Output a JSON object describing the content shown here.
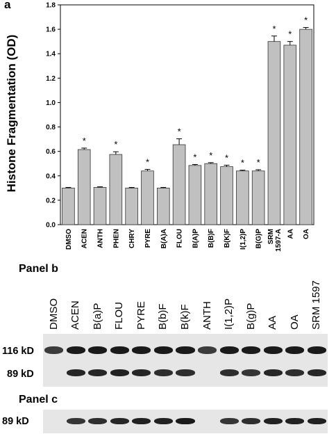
{
  "chart_data": {
    "type": "bar",
    "panel_label": "a",
    "ylabel": "Histone Fragmentation (OD)",
    "ylim": [
      0,
      1.8
    ],
    "yticks": [
      "0.0",
      "0.2",
      "0.4",
      "0.6",
      "0.8",
      "1.0",
      "1.2",
      "1.4",
      "1.6",
      "1.8"
    ],
    "categories": [
      "DMSO",
      "ACEN",
      "ANTH",
      "PHEN",
      "CHRY",
      "PYRE",
      "B(A)A",
      "FLOU",
      "B(A)P",
      "B(B)F",
      "B(K)F",
      "I(1,2)P",
      "B(G)P",
      "SRM 1597-A",
      "AA",
      "OA"
    ],
    "values": [
      0.3,
      0.615,
      0.305,
      0.575,
      0.3,
      0.44,
      0.3,
      0.655,
      0.485,
      0.5,
      0.475,
      0.44,
      0.44,
      1.5,
      1.47,
      1.6
    ],
    "errors": [
      0.005,
      0.012,
      0.005,
      0.022,
      0.005,
      0.013,
      0.005,
      0.048,
      0.008,
      0.008,
      0.012,
      0.006,
      0.01,
      0.045,
      0.03,
      0.015
    ],
    "significant": [
      false,
      true,
      false,
      true,
      false,
      true,
      false,
      true,
      true,
      true,
      true,
      true,
      true,
      true,
      true,
      true
    ],
    "significance_marker": "*",
    "bar_color": "#c0c0c0",
    "grid": false
  },
  "panel_b": {
    "title": "Panel b",
    "lanes": [
      "DMSO",
      "ACEN",
      "B(a)P",
      "FLOU",
      "PYRE",
      "B(b)F",
      "B(k)F",
      "ANTH",
      "I(1,2)P",
      "B(g)P",
      "AA",
      "OA",
      "SRM 1597"
    ],
    "band_labels": [
      "116 kD",
      "89 kD"
    ],
    "upper_band_intensity": [
      0.75,
      1,
      1,
      1,
      1,
      1,
      1,
      0.75,
      1,
      1,
      1,
      1,
      1
    ],
    "lower_band_intensity": [
      0,
      0.9,
      0.9,
      0.95,
      0.9,
      0.85,
      0.85,
      0,
      0.85,
      0.8,
      0.9,
      0.85,
      0.9
    ]
  },
  "panel_c": {
    "title": "Panel c",
    "band_label": "89 kD",
    "band_intensity": [
      0,
      0.8,
      0.85,
      0.9,
      0.95,
      0.95,
      1,
      0,
      0.8,
      0.85,
      0.95,
      0.95,
      0.95
    ]
  }
}
